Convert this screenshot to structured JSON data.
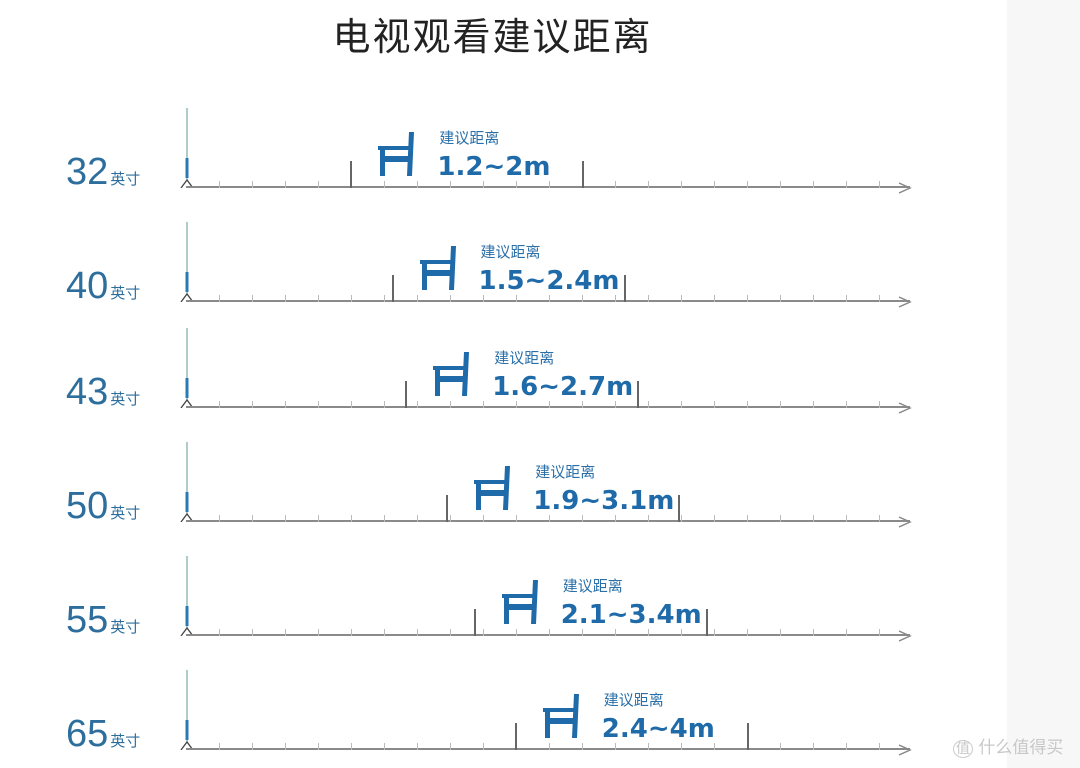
{
  "title": "电视观看建议距离",
  "label": "建议距离",
  "unit": "英寸",
  "accent": "#1f6aa8",
  "rows": [
    {
      "size": "32",
      "range": "1.2~2m",
      "min": 1.2,
      "max": 2
    },
    {
      "size": "40",
      "range": "1.5~2.4m",
      "min": 1.5,
      "max": 2.4
    },
    {
      "size": "43",
      "range": "1.6~2.7m",
      "min": 1.6,
      "max": 2.7
    },
    {
      "size": "50",
      "range": "1.9~3.1m",
      "min": 1.9,
      "max": 3.1
    },
    {
      "size": "55",
      "range": "2.1~3.4m",
      "min": 2.1,
      "max": 3.4
    },
    {
      "size": "65",
      "range": "2.4~4m",
      "min": 2.4,
      "max": 4
    }
  ],
  "watermark": {
    "badge": "值",
    "text": "什么值得买"
  }
}
